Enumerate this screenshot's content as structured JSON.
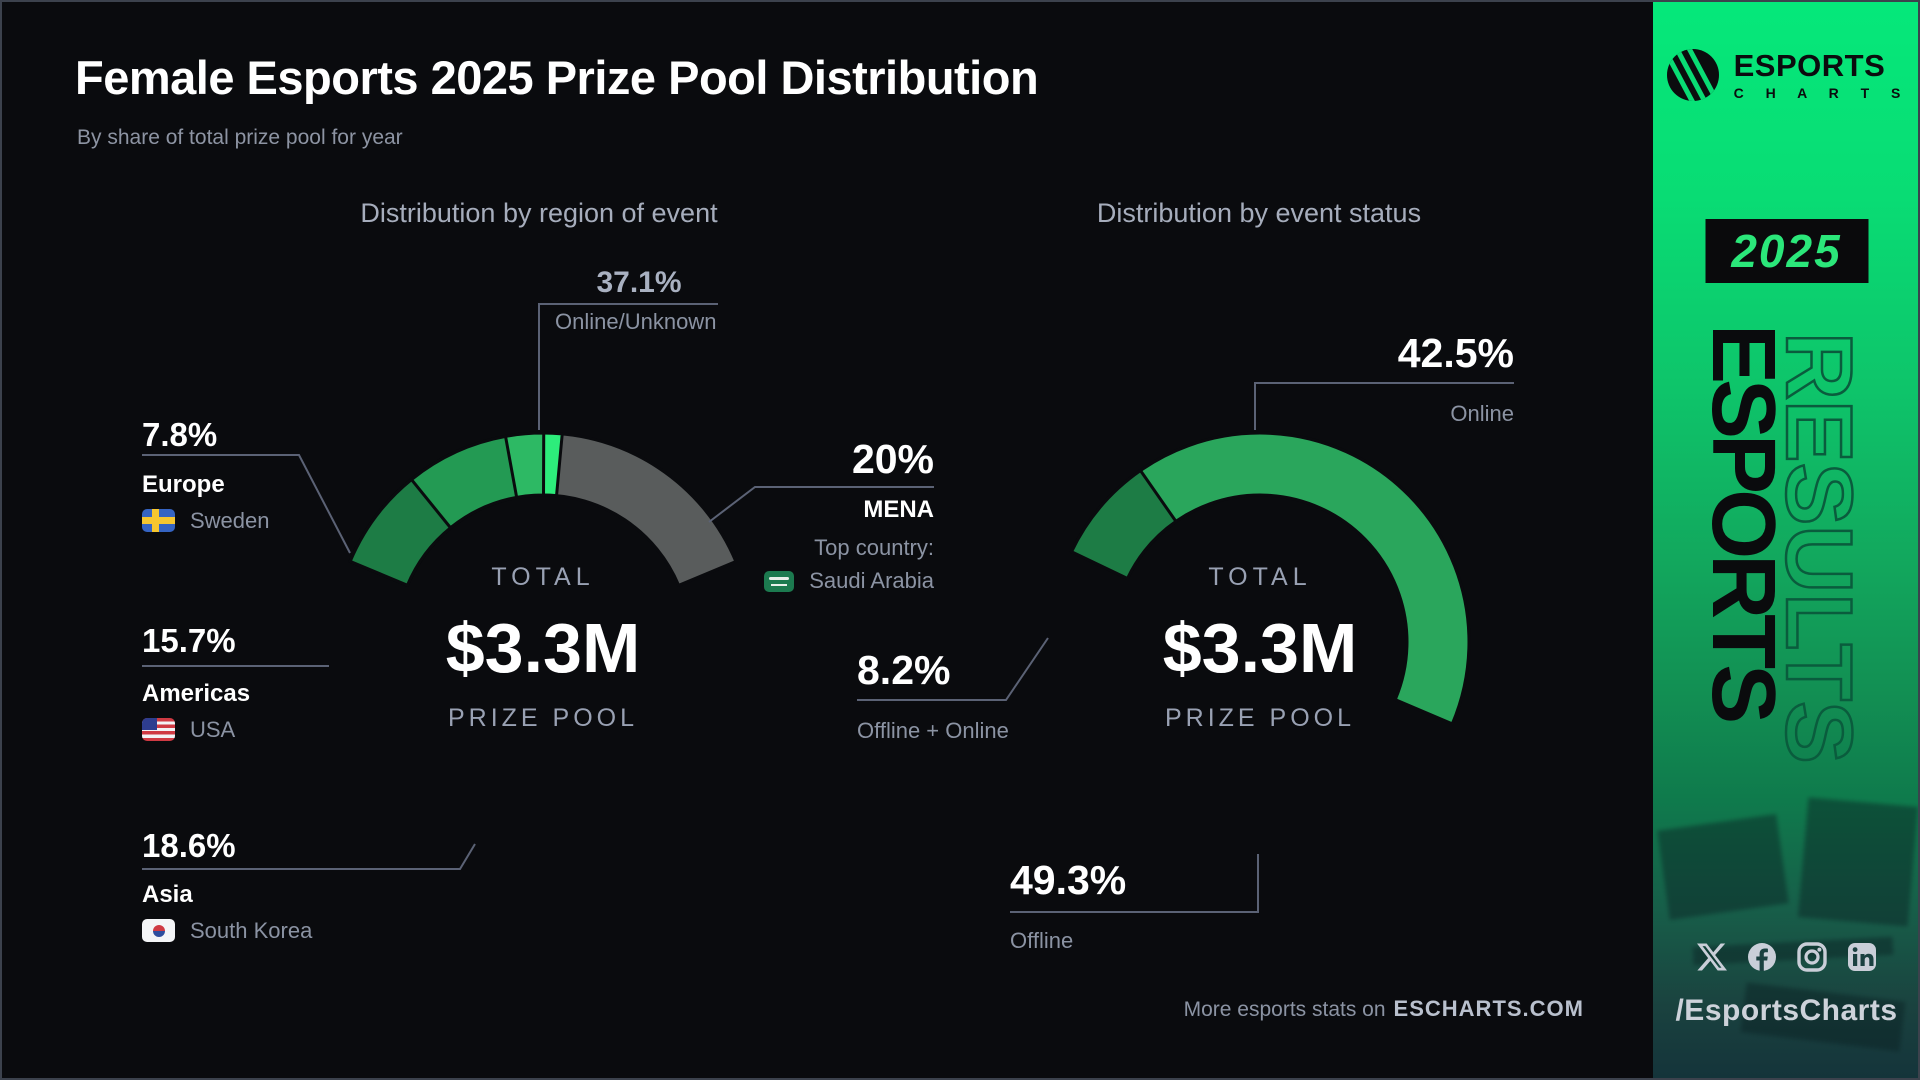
{
  "header": {
    "title": "Female Esports 2025 Prize Pool Distribution",
    "subtitle": "By share of total prize pool for year"
  },
  "charts": {
    "region": {
      "title": "Distribution by region of event",
      "center": {
        "top": "TOTAL",
        "value": "$3.3M",
        "bottom": "PRIZE POOL"
      },
      "callouts": {
        "online_unknown": {
          "pct": "37.1%",
          "name": "Online/Unknown"
        },
        "europe": {
          "pct": "7.8%",
          "name": "Europe",
          "country": "Sweden"
        },
        "americas": {
          "pct": "15.7%",
          "name": "Americas",
          "country": "USA"
        },
        "asia": {
          "pct": "18.6%",
          "name": "Asia",
          "country": "South Korea"
        },
        "mena": {
          "pct": "20%",
          "name": "MENA",
          "top_country_label": "Top country:",
          "country": "Saudi Arabia"
        }
      }
    },
    "status": {
      "title": "Distribution by event status",
      "center": {
        "top": "TOTAL",
        "value": "$3.3M",
        "bottom": "PRIZE POOL"
      },
      "callouts": {
        "online": {
          "pct": "42.5%",
          "name": "Online"
        },
        "offline_online": {
          "pct": "8.2%",
          "name": "Offline + Online"
        },
        "offline": {
          "pct": "49.3%",
          "name": "Offline"
        }
      }
    }
  },
  "chart_data": [
    {
      "type": "pie",
      "id": "donut-region",
      "title": "Distribution by region of event",
      "total_label": "TOTAL $3.3M PRIZE POOL",
      "start_deg": -67.3,
      "segments": [
        {
          "label": "Online/Unknown",
          "value": 37.1,
          "color": "#595c5c"
        },
        {
          "label": "MENA",
          "value": 20.0,
          "color": "#2ded7b",
          "top_country": "Saudi Arabia"
        },
        {
          "label": "Asia",
          "value": 18.6,
          "color": "#2db964",
          "top_country": "South Korea"
        },
        {
          "label": "Americas",
          "value": 15.7,
          "color": "#239a53",
          "top_country": "USA"
        },
        {
          "label": "Europe",
          "value": 7.8,
          "color": "#1d7c45",
          "top_country": "Sweden"
        }
      ]
    },
    {
      "type": "pie",
      "id": "donut-status",
      "title": "Distribution by event status",
      "total_label": "TOTAL $3.3M PRIZE POOL",
      "start_deg": -64.4,
      "segments": [
        {
          "label": "Online",
          "value": 42.5,
          "color": "#2ded7b"
        },
        {
          "label": "Offline",
          "value": 49.3,
          "color": "#2aa65c"
        },
        {
          "label": "Offline + Online",
          "value": 8.2,
          "color": "#1d7c45"
        }
      ]
    }
  ],
  "footer": {
    "text": "More esports stats on",
    "site": "ESCHARTS.COM"
  },
  "sidebar": {
    "brand": "ESPORTS",
    "brand_sub": "C H A R T S",
    "year": "2025",
    "vertical_primary": "ESPORTS",
    "vertical_outline": "RESULTS",
    "handle": "/EsportsCharts",
    "socials": [
      "x",
      "facebook",
      "instagram",
      "linkedin"
    ]
  },
  "colors": {
    "background": "#0a0b0e",
    "sidebar_green": "#05e87a",
    "accent_green": "#2ded7b",
    "gray_segment": "#595c5c",
    "leader_line": "#5b6275",
    "muted_text": "#8b93a3"
  }
}
